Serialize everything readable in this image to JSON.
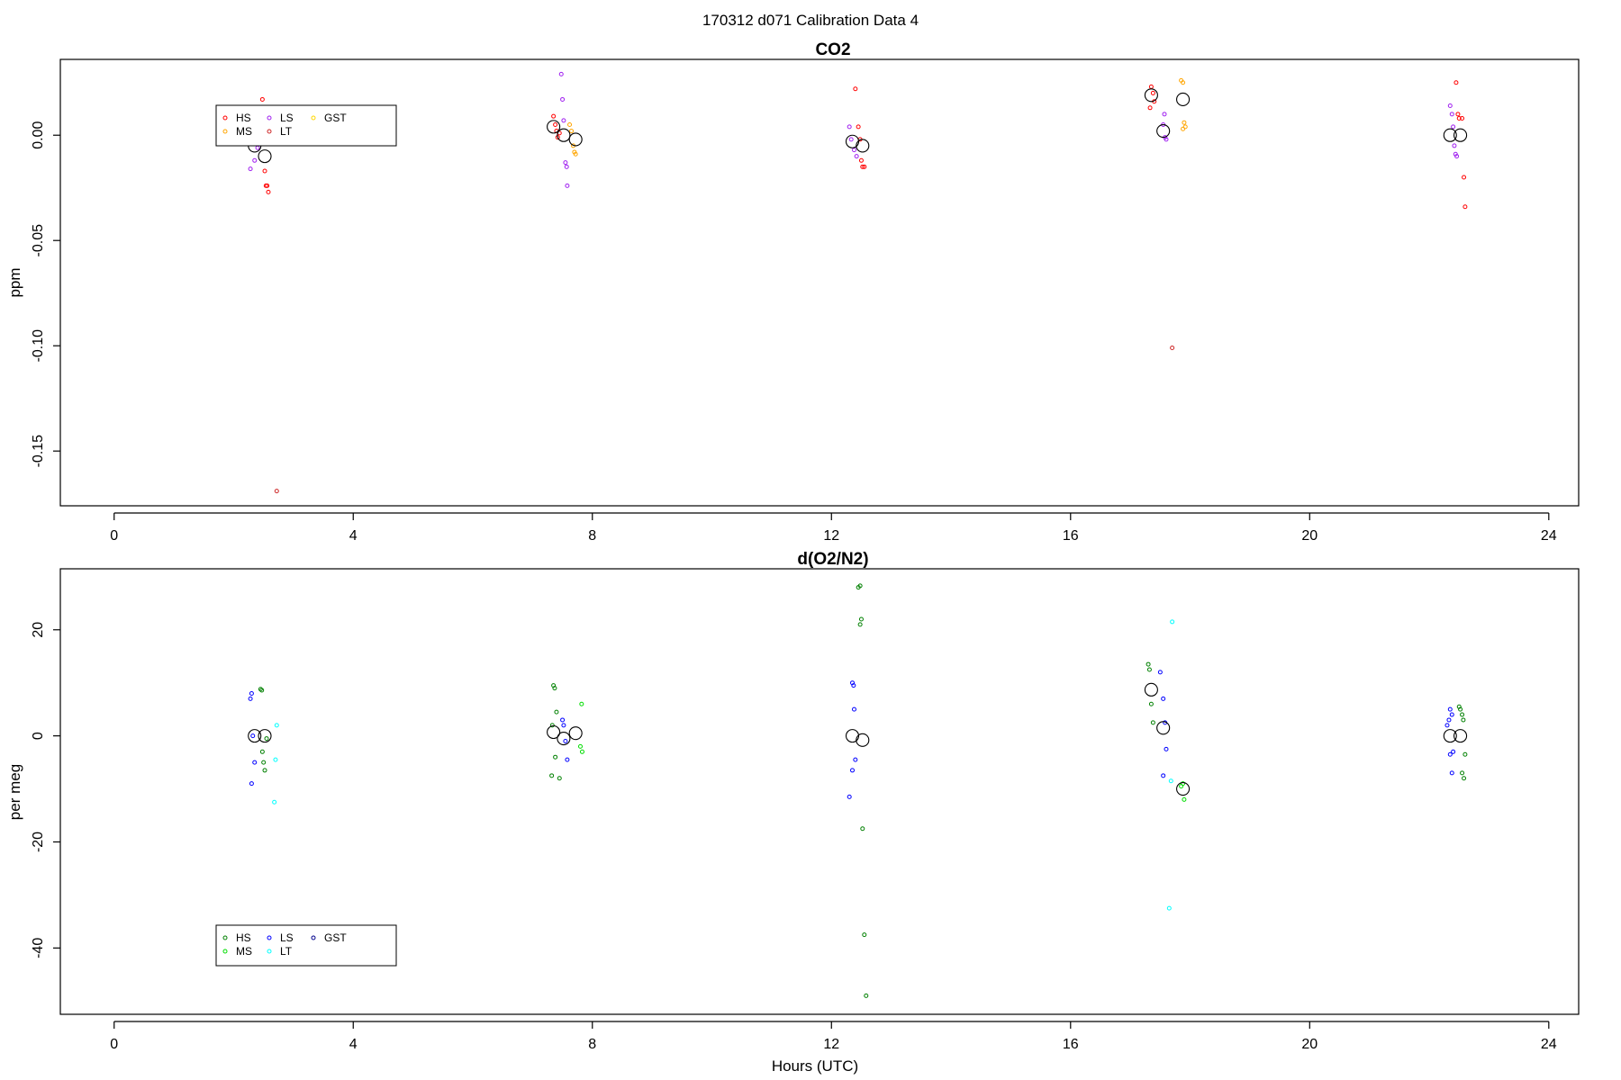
{
  "figure": {
    "super_title": "170312   d071   Calibration Data 4",
    "xlabel": "Hours (UTC)"
  },
  "chart_data": [
    {
      "type": "scatter",
      "title": "CO2",
      "ylabel": "ppm",
      "xlabel": "",
      "xlim": [
        -0.9,
        24.5
      ],
      "ylim": [
        -0.176,
        0.036
      ],
      "xticks": [
        0,
        4,
        8,
        12,
        16,
        20,
        24
      ],
      "yticks": [
        0.0,
        -0.05,
        -0.1,
        -0.15
      ],
      "ytick_labels": [
        "0.00",
        "-0.05",
        "-0.10",
        "-0.15"
      ],
      "grid": false,
      "legend_placement": "top-left",
      "legend": [
        {
          "name": "HS",
          "color": "#ff0000"
        },
        {
          "name": "MS",
          "color": "#ffa500"
        },
        {
          "name": "LS",
          "color": "#a020f0"
        },
        {
          "name": "LT",
          "color": "#cd2626"
        },
        {
          "name": "GST",
          "color": "#ffd700"
        }
      ],
      "series": [
        {
          "name": "HS",
          "color": "#ff0000",
          "points": [
            [
              2.48,
              0.017
            ],
            [
              2.52,
              -0.017
            ],
            [
              2.54,
              -0.024
            ],
            [
              2.56,
              -0.024
            ],
            [
              2.58,
              -0.027
            ],
            [
              7.35,
              0.009
            ],
            [
              7.38,
              0.005
            ],
            [
              7.4,
              0.002
            ],
            [
              7.42,
              -0.001
            ],
            [
              7.45,
              0.001
            ],
            [
              12.4,
              0.022
            ],
            [
              12.45,
              0.004
            ],
            [
              12.48,
              -0.002
            ],
            [
              12.5,
              -0.012
            ],
            [
              12.52,
              -0.015
            ],
            [
              12.55,
              -0.015
            ],
            [
              17.35,
              0.023
            ],
            [
              17.38,
              0.02
            ],
            [
              17.33,
              0.013
            ],
            [
              17.4,
              0.016
            ],
            [
              22.45,
              0.025
            ],
            [
              22.48,
              0.01
            ],
            [
              22.5,
              0.008
            ],
            [
              22.55,
              0.008
            ],
            [
              22.58,
              -0.02
            ],
            [
              22.6,
              -0.034
            ]
          ]
        },
        {
          "name": "LS",
          "color": "#a020f0",
          "points": [
            [
              2.28,
              -0.016
            ],
            [
              2.35,
              -0.012
            ],
            [
              2.4,
              -0.006
            ],
            [
              2.42,
              -0.003
            ],
            [
              7.48,
              0.029
            ],
            [
              7.5,
              0.017
            ],
            [
              7.52,
              0.007
            ],
            [
              7.55,
              -0.013
            ],
            [
              7.57,
              -0.015
            ],
            [
              7.58,
              -0.024
            ],
            [
              12.3,
              0.004
            ],
            [
              12.33,
              -0.002
            ],
            [
              12.38,
              -0.007
            ],
            [
              12.42,
              -0.01
            ],
            [
              17.55,
              0.005
            ],
            [
              17.58,
              -0.001
            ],
            [
              17.6,
              -0.002
            ],
            [
              17.57,
              0.01
            ],
            [
              22.35,
              0.014
            ],
            [
              22.38,
              0.01
            ],
            [
              22.4,
              0.004
            ],
            [
              22.42,
              -0.005
            ],
            [
              22.44,
              -0.009
            ],
            [
              22.46,
              -0.01
            ]
          ]
        },
        {
          "name": "MS",
          "color": "#ffa500",
          "points": [
            [
              7.62,
              0.005
            ],
            [
              7.65,
              0.002
            ],
            [
              7.68,
              -0.005
            ],
            [
              7.7,
              -0.008
            ],
            [
              7.72,
              -0.009
            ],
            [
              17.85,
              0.026
            ],
            [
              17.88,
              0.025
            ],
            [
              17.9,
              0.006
            ],
            [
              17.92,
              0.004
            ],
            [
              17.88,
              0.003
            ]
          ]
        },
        {
          "name": "LT",
          "color": "#cd2626",
          "points": [
            [
              2.72,
              -0.169
            ],
            [
              17.7,
              -0.101
            ]
          ]
        },
        {
          "name": "mean",
          "color": "#000000",
          "marker": "large-circle",
          "points": [
            [
              2.35,
              -0.005
            ],
            [
              2.52,
              -0.01
            ],
            [
              7.35,
              0.004
            ],
            [
              7.52,
              0.0
            ],
            [
              7.72,
              -0.002
            ],
            [
              12.35,
              -0.003
            ],
            [
              12.52,
              -0.005
            ],
            [
              17.35,
              0.019
            ],
            [
              17.55,
              0.002
            ],
            [
              17.88,
              0.017
            ],
            [
              22.35,
              0.0
            ],
            [
              22.52,
              0.0
            ]
          ]
        }
      ]
    },
    {
      "type": "scatter",
      "title": "d(O2/N2)",
      "ylabel": "per meg",
      "xlabel": "Hours (UTC)",
      "xlim": [
        -0.9,
        24.5
      ],
      "ylim": [
        -52.5,
        31.5
      ],
      "xticks": [
        0,
        4,
        8,
        12,
        16,
        20,
        24
      ],
      "yticks": [
        20,
        0,
        -20,
        -40
      ],
      "ytick_labels": [
        "20",
        "0",
        "-20",
        "-40"
      ],
      "grid": false,
      "legend_placement": "bottom-left",
      "legend": [
        {
          "name": "HS",
          "color": "#008000"
        },
        {
          "name": "MS",
          "color": "#00dd00"
        },
        {
          "name": "LS",
          "color": "#0000ff"
        },
        {
          "name": "LT",
          "color": "#00ffff"
        },
        {
          "name": "GST",
          "color": "#00008b"
        }
      ],
      "series": [
        {
          "name": "HS",
          "color": "#008000",
          "points": [
            [
              2.45,
              8.8
            ],
            [
              2.47,
              8.6
            ],
            [
              2.48,
              -3.0
            ],
            [
              2.5,
              -5.0
            ],
            [
              2.52,
              -6.5
            ],
            [
              2.55,
              -0.5
            ],
            [
              7.35,
              9.5
            ],
            [
              7.37,
              9.0
            ],
            [
              7.4,
              4.5
            ],
            [
              7.33,
              2.0
            ],
            [
              7.38,
              -4.0
            ],
            [
              7.32,
              -7.5
            ],
            [
              7.45,
              -8.0
            ],
            [
              12.45,
              28.0
            ],
            [
              12.48,
              28.3
            ],
            [
              12.5,
              22.0
            ],
            [
              12.48,
              21.0
            ],
            [
              12.52,
              -17.5
            ],
            [
              12.55,
              -37.5
            ],
            [
              12.58,
              -49.0
            ],
            [
              17.3,
              13.5
            ],
            [
              17.32,
              12.5
            ],
            [
              17.35,
              6.0
            ],
            [
              17.38,
              2.5
            ],
            [
              22.5,
              5.5
            ],
            [
              22.52,
              5.0
            ],
            [
              22.55,
              4.0
            ],
            [
              22.57,
              3.0
            ],
            [
              22.6,
              -3.5
            ],
            [
              22.55,
              -7.0
            ],
            [
              22.58,
              -8.0
            ]
          ]
        },
        {
          "name": "LS",
          "color": "#0000ff",
          "points": [
            [
              2.3,
              8.0
            ],
            [
              2.28,
              7.0
            ],
            [
              2.32,
              0.0
            ],
            [
              2.35,
              -5.0
            ],
            [
              2.3,
              -9.0
            ],
            [
              7.5,
              3.0
            ],
            [
              7.52,
              2.0
            ],
            [
              7.55,
              -1.0
            ],
            [
              7.58,
              -4.5
            ],
            [
              12.35,
              10.0
            ],
            [
              12.37,
              9.5
            ],
            [
              12.38,
              5.0
            ],
            [
              12.4,
              -4.5
            ],
            [
              12.35,
              -6.5
            ],
            [
              12.3,
              -11.5
            ],
            [
              17.5,
              12.0
            ],
            [
              17.55,
              7.0
            ],
            [
              17.58,
              2.5
            ],
            [
              17.6,
              -2.5
            ],
            [
              17.55,
              -7.5
            ],
            [
              22.35,
              5.0
            ],
            [
              22.38,
              4.0
            ],
            [
              22.33,
              3.0
            ],
            [
              22.3,
              2.0
            ],
            [
              22.4,
              -3.0
            ],
            [
              22.35,
              -3.5
            ],
            [
              22.38,
              -7.0
            ]
          ]
        },
        {
          "name": "MS",
          "color": "#00dd00",
          "points": [
            [
              7.82,
              6.0
            ],
            [
              7.8,
              -2.0
            ],
            [
              7.83,
              -3.0
            ],
            [
              17.85,
              -9.5
            ],
            [
              17.88,
              -9.0
            ],
            [
              17.9,
              -12.0
            ]
          ]
        },
        {
          "name": "LT",
          "color": "#00ffff",
          "points": [
            [
              2.72,
              2.0
            ],
            [
              2.7,
              -4.5
            ],
            [
              2.68,
              -12.5
            ],
            [
              17.7,
              21.5
            ],
            [
              17.68,
              -8.5
            ],
            [
              17.65,
              -32.5
            ]
          ]
        },
        {
          "name": "mean",
          "color": "#000000",
          "marker": "large-circle",
          "points": [
            [
              2.35,
              0.0
            ],
            [
              2.52,
              0.0
            ],
            [
              7.35,
              0.7
            ],
            [
              7.52,
              -0.5
            ],
            [
              7.72,
              0.5
            ],
            [
              12.35,
              0.0
            ],
            [
              12.52,
              -0.8
            ],
            [
              17.35,
              8.7
            ],
            [
              17.55,
              1.5
            ],
            [
              17.88,
              -10.0
            ],
            [
              22.35,
              0.0
            ],
            [
              22.52,
              0.0
            ]
          ]
        }
      ]
    }
  ]
}
